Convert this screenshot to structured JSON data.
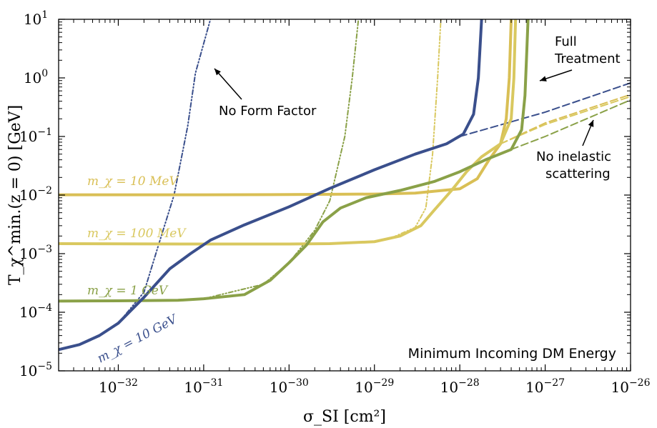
{
  "chart_data": {
    "type": "line",
    "xscale": "log",
    "yscale": "log",
    "xlim": [
      2e-33,
      1e-26
    ],
    "ylim": [
      1e-05,
      10
    ],
    "xlabel": "σ_SI [cm²]",
    "ylabel": "T_χ^min.(z = 0) [GeV]",
    "grid": false,
    "xticks": [
      {
        "base": "10",
        "exp": "−32",
        "value": 1e-32
      },
      {
        "base": "10",
        "exp": "−31",
        "value": 1e-31
      },
      {
        "base": "10",
        "exp": "−30",
        "value": 1e-30
      },
      {
        "base": "10",
        "exp": "−29",
        "value": 1e-29
      },
      {
        "base": "10",
        "exp": "−28",
        "value": 1e-28
      },
      {
        "base": "10",
        "exp": "−27",
        "value": 1e-27
      },
      {
        "base": "10",
        "exp": "−26",
        "value": 1e-26
      }
    ],
    "yticks": [
      {
        "base": "10",
        "exp": "−5",
        "value": 1e-05
      },
      {
        "base": "10",
        "exp": "−4",
        "value": 0.0001
      },
      {
        "base": "10",
        "exp": "−3",
        "value": 0.001
      },
      {
        "base": "10",
        "exp": "−2",
        "value": 0.01
      },
      {
        "base": "10",
        "exp": "−1",
        "value": 0.1
      },
      {
        "base": "10",
        "exp": "0",
        "value": 1
      },
      {
        "base": "10",
        "exp": "1",
        "value": 10
      }
    ],
    "series": [
      {
        "name": "m_χ = 10 MeV",
        "variant": "full",
        "color": "#d9bf55",
        "points": [
          [
            2e-33,
            0.0101
          ],
          [
            1e-31,
            0.0101
          ],
          [
            1e-30,
            0.0102
          ],
          [
            1e-29,
            0.0104
          ],
          [
            3e-29,
            0.0108
          ],
          [
            1e-28,
            0.0128
          ],
          [
            1.6e-28,
            0.019
          ],
          [
            2.2e-28,
            0.04
          ],
          [
            3e-28,
            0.075
          ],
          [
            3.5e-28,
            0.2
          ],
          [
            3.8e-28,
            1
          ],
          [
            4e-28,
            10
          ]
        ]
      },
      {
        "name": "m_χ = 10 MeV",
        "variant": "no-inelastic",
        "color": "#d9bf55",
        "points": [
          [
            3e-28,
            0.075
          ],
          [
            1e-27,
            0.17
          ],
          [
            1e-26,
            0.52
          ]
        ]
      },
      {
        "name": "m_χ = 100 MeV",
        "variant": "full",
        "color": "#d9c85f",
        "points": [
          [
            2e-33,
            0.00148
          ],
          [
            1e-31,
            0.00146
          ],
          [
            1e-30,
            0.00146
          ],
          [
            3e-30,
            0.00148
          ],
          [
            1e-29,
            0.0016
          ],
          [
            2e-29,
            0.002
          ],
          [
            3.5e-29,
            0.003
          ],
          [
            5e-29,
            0.0055
          ],
          [
            8e-29,
            0.012
          ],
          [
            1.2e-28,
            0.025
          ],
          [
            1.8e-28,
            0.045
          ],
          [
            3e-28,
            0.075
          ],
          [
            4e-28,
            0.2
          ],
          [
            4.3e-28,
            1
          ],
          [
            4.5e-28,
            10
          ]
        ]
      },
      {
        "name": "m_χ = 100 MeV",
        "variant": "no-inelastic",
        "color": "#d9c85f",
        "points": [
          [
            3e-28,
            0.075
          ],
          [
            1e-27,
            0.16
          ],
          [
            1e-26,
            0.48
          ]
        ]
      },
      {
        "name": "m_χ = 100 MeV",
        "variant": "no-form-factor",
        "color": "#d9c85f",
        "points": [
          [
            1.5e-29,
            0.0018
          ],
          [
            3e-29,
            0.0028
          ],
          [
            4e-29,
            0.006
          ],
          [
            4.8e-29,
            0.05
          ],
          [
            5.5e-29,
            1
          ],
          [
            6e-29,
            10
          ]
        ]
      },
      {
        "name": "m_χ = 1 GeV",
        "variant": "full",
        "color": "#8aa148",
        "points": [
          [
            2e-33,
            0.000155
          ],
          [
            1e-32,
            0.000157
          ],
          [
            5e-32,
            0.00016
          ],
          [
            1e-31,
            0.00017
          ],
          [
            3e-31,
            0.0002
          ],
          [
            6e-31,
            0.00035
          ],
          [
            1e-30,
            0.0007
          ],
          [
            1.6e-30,
            0.0014
          ],
          [
            2.5e-30,
            0.0035
          ],
          [
            4e-30,
            0.006
          ],
          [
            8e-30,
            0.009
          ],
          [
            2e-29,
            0.012
          ],
          [
            5e-29,
            0.017
          ],
          [
            1e-28,
            0.025
          ],
          [
            2e-28,
            0.04
          ],
          [
            4e-28,
            0.06
          ],
          [
            5.3e-28,
            0.13
          ],
          [
            5.8e-28,
            0.5
          ],
          [
            6.1e-28,
            3
          ],
          [
            6.3e-28,
            10
          ]
        ]
      },
      {
        "name": "m_χ = 1 GeV",
        "variant": "no-inelastic",
        "color": "#8aa148",
        "points": [
          [
            4e-28,
            0.06
          ],
          [
            1e-27,
            0.1
          ],
          [
            1e-26,
            0.42
          ]
        ]
      },
      {
        "name": "m_χ = 1 GeV",
        "variant": "no-form-factor",
        "color": "#8aa148",
        "points": [
          [
            1e-31,
            0.00017
          ],
          [
            5e-31,
            0.0003
          ],
          [
            1e-30,
            0.0007
          ],
          [
            2e-30,
            0.0025
          ],
          [
            3e-30,
            0.008
          ],
          [
            4.5e-30,
            0.1
          ],
          [
            5.5e-30,
            1
          ],
          [
            6.5e-30,
            10
          ]
        ]
      },
      {
        "name": "m_χ = 10 GeV",
        "variant": "full",
        "color": "#3a4f8c",
        "points": [
          [
            2e-33,
            2.3e-05
          ],
          [
            3.5e-33,
            2.8e-05
          ],
          [
            6e-33,
            4e-05
          ],
          [
            1e-32,
            6.5e-05
          ],
          [
            2e-32,
            0.00018
          ],
          [
            4e-32,
            0.00055
          ],
          [
            7e-32,
            0.001
          ],
          [
            1.2e-31,
            0.0017
          ],
          [
            3e-31,
            0.0031
          ],
          [
            1e-30,
            0.0063
          ],
          [
            3e-30,
            0.013
          ],
          [
            1e-29,
            0.027
          ],
          [
            3e-29,
            0.05
          ],
          [
            7e-29,
            0.075
          ],
          [
            1.1e-28,
            0.11
          ],
          [
            1.45e-28,
            0.24
          ],
          [
            1.65e-28,
            1
          ],
          [
            1.8e-28,
            10
          ]
        ]
      },
      {
        "name": "m_χ = 10 GeV",
        "variant": "no-inelastic",
        "color": "#3a4f8c",
        "points": [
          [
            1e-28,
            0.1
          ],
          [
            1e-27,
            0.26
          ],
          [
            1e-26,
            0.82
          ]
        ]
      },
      {
        "name": "m_χ = 10 GeV",
        "variant": "no-form-factor",
        "color": "#3a4f8c",
        "points": [
          [
            1e-32,
            6.5e-05
          ],
          [
            2e-32,
            0.00022
          ],
          [
            3e-32,
            0.0015
          ],
          [
            4.5e-32,
            0.01
          ],
          [
            6.5e-32,
            0.15
          ],
          [
            8e-32,
            1.2
          ],
          [
            1.2e-31,
            10
          ]
        ]
      }
    ],
    "labels": [
      {
        "text": "m_χ = 10 MeV",
        "color": "#d9bf55"
      },
      {
        "text": "m_χ = 100 MeV",
        "color": "#d9c85f"
      },
      {
        "text": "m_χ = 1 GeV",
        "color": "#8aa148"
      },
      {
        "text": "m_χ = 10 GeV",
        "color": "#3a4f8c"
      }
    ],
    "annotations": {
      "no_form_factor": "No Form Factor",
      "full_treatment_1": "Full",
      "full_treatment_2": "Treatment",
      "no_inelastic_1": "No inelastic",
      "no_inelastic_2": "scattering",
      "box_title": "Minimum Incoming DM Energy"
    }
  }
}
